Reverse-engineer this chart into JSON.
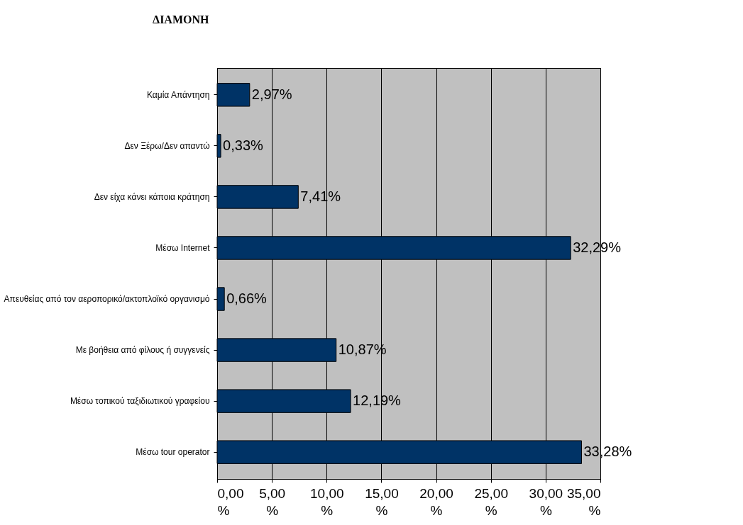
{
  "chart_data": {
    "type": "bar",
    "orientation": "horizontal",
    "title": "ΔΙΑΜΟΝΗ",
    "categories": [
      "Καμία Απάντηση",
      "Δεν Ξέρω/Δεν απαντώ",
      "Δεν είχα κάνει κάποια κράτηση",
      "Μέσω Internet",
      "Απευθείας από τον αεροπορικό/ακτοπλοϊκό οργανισμό",
      "Με βοήθεια από φίλους ή συγγενείς",
      "Μέσω τοπικού ταξιδιωτικού γραφείου",
      "Μέσω tour operator"
    ],
    "values": [
      2.97,
      0.33,
      7.41,
      32.29,
      0.66,
      10.87,
      12.19,
      33.28
    ],
    "value_labels": [
      "2,97%",
      "0,33%",
      "7,41%",
      "32,29%",
      "0,66%",
      "10,87%",
      "12,19%",
      "33,28%"
    ],
    "color": "#003366",
    "xlim": [
      0,
      35
    ],
    "xticks": [
      {
        "value": 0,
        "label": "0,00 %"
      },
      {
        "value": 5,
        "label": "5,00 %"
      },
      {
        "value": 10,
        "label": "10,00 %"
      },
      {
        "value": 15,
        "label": "15,00 %"
      },
      {
        "value": 20,
        "label": "20,00 %"
      },
      {
        "value": 25,
        "label": "25,00 %"
      },
      {
        "value": 30,
        "label": "30,00 %"
      },
      {
        "value": 35,
        "label": "35,00 %"
      }
    ],
    "grid": "x"
  }
}
